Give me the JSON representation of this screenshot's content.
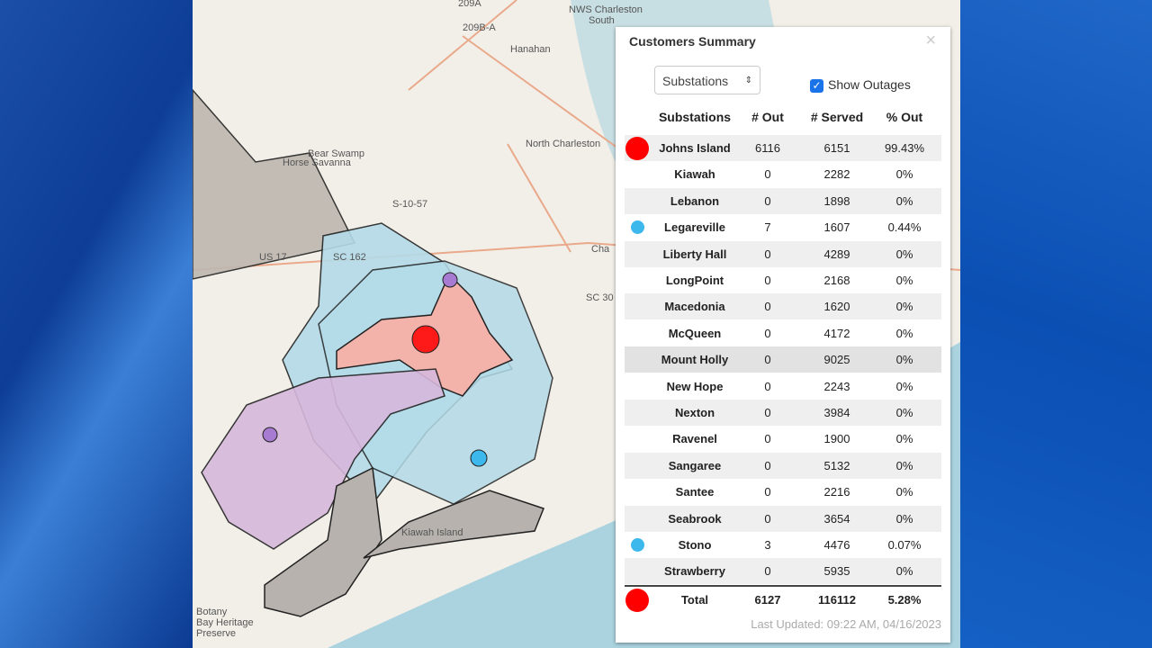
{
  "map": {
    "labels": [
      "209A",
      "209B-A",
      "NWS Charleston",
      "South",
      "Hanahan",
      "North Charleston",
      "Bear Swamp",
      "Horse Savanna",
      "S-10-57",
      "US 17",
      "SC 162",
      "SC 30",
      "Cha",
      "Kiawah Island",
      "Botany",
      "Bay Heritage",
      "Preserve"
    ]
  },
  "panel": {
    "title": "Customers Summary",
    "close": "×",
    "select": "Substations",
    "checkbox": "Show Outages",
    "columns": [
      "Substations",
      "# Out",
      "# Served",
      "% Out"
    ],
    "rows": [
      {
        "name": "Johns Island",
        "out": 6116,
        "served": 6151,
        "pct": "99.43%",
        "dot": "#ff0000"
      },
      {
        "name": "Kiawah",
        "out": 0,
        "served": 2282,
        "pct": "0%"
      },
      {
        "name": "Lebanon",
        "out": 0,
        "served": 1898,
        "pct": "0%"
      },
      {
        "name": "Legareville",
        "out": 7,
        "served": 1607,
        "pct": "0.44%",
        "dot": "#3db8ec"
      },
      {
        "name": "Liberty Hall",
        "out": 0,
        "served": 4289,
        "pct": "0%"
      },
      {
        "name": "LongPoint",
        "out": 0,
        "served": 2168,
        "pct": "0%"
      },
      {
        "name": "Macedonia",
        "out": 0,
        "served": 1620,
        "pct": "0%"
      },
      {
        "name": "McQueen",
        "out": 0,
        "served": 4172,
        "pct": "0%"
      },
      {
        "name": "Mount Holly",
        "out": 0,
        "served": 9025,
        "pct": "0%"
      },
      {
        "name": "New Hope",
        "out": 0,
        "served": 2243,
        "pct": "0%"
      },
      {
        "name": "Nexton",
        "out": 0,
        "served": 3984,
        "pct": "0%"
      },
      {
        "name": "Ravenel",
        "out": 0,
        "served": 1900,
        "pct": "0%"
      },
      {
        "name": "Sangaree",
        "out": 0,
        "served": 5132,
        "pct": "0%"
      },
      {
        "name": "Santee",
        "out": 0,
        "served": 2216,
        "pct": "0%"
      },
      {
        "name": "Seabrook",
        "out": 0,
        "served": 3654,
        "pct": "0%"
      },
      {
        "name": "Stono",
        "out": 3,
        "served": 4476,
        "pct": "0.07%",
        "dot": "#3db8ec"
      },
      {
        "name": "Strawberry",
        "out": 0,
        "served": 5935,
        "pct": "0%"
      }
    ],
    "total": {
      "name": "Total",
      "out": 6127,
      "served": 116112,
      "pct": "5.28%",
      "dot": "#ff0000"
    },
    "updated": "Last Updated: 09:22 AM, 04/16/2023"
  }
}
